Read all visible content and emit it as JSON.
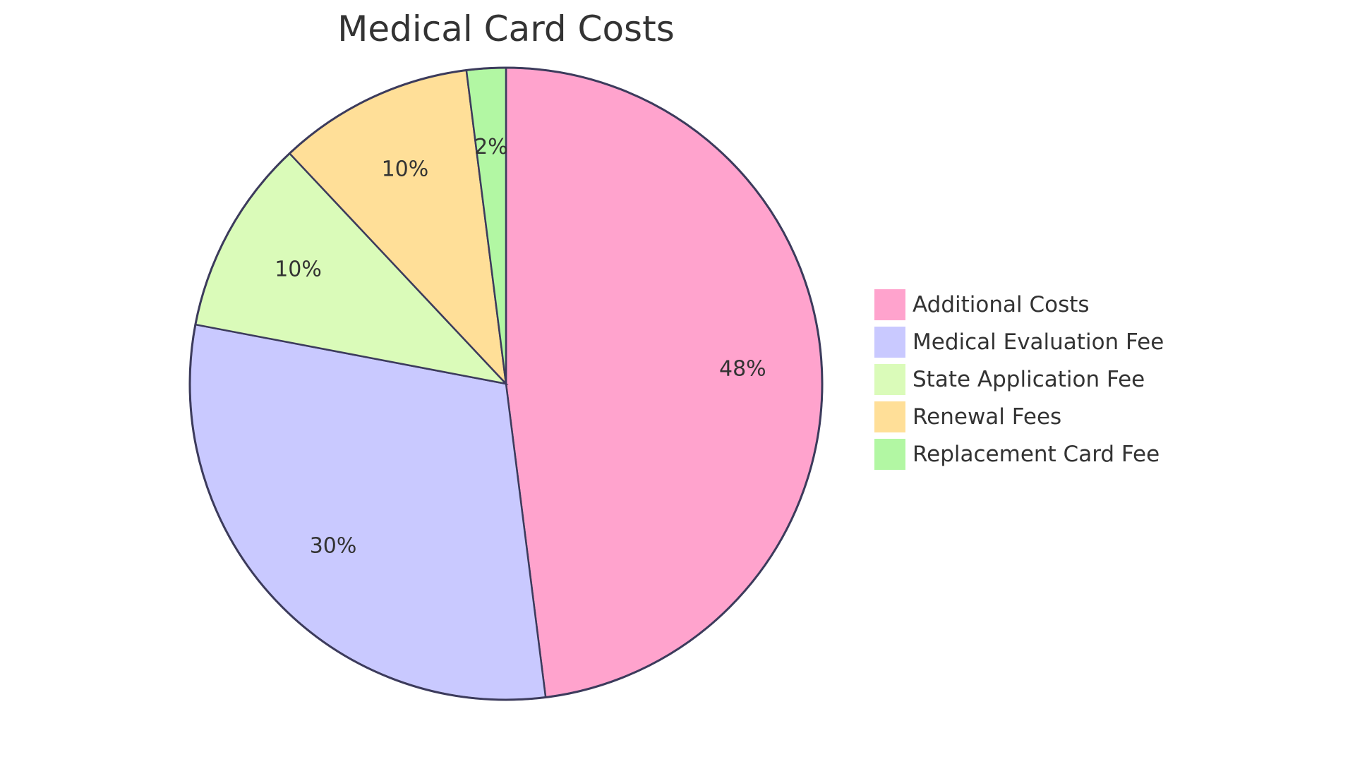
{
  "chart_data": {
    "type": "pie",
    "title": "Medical Card Costs",
    "legend_position": "right",
    "slices": [
      {
        "label": "Additional Costs",
        "value": 48,
        "display": "48%",
        "color": "#FFA3CD"
      },
      {
        "label": "Medical Evaluation Fee",
        "value": 30,
        "display": "30%",
        "color": "#C9C9FF"
      },
      {
        "label": "State Application Fee",
        "value": 10,
        "display": "10%",
        "color": "#DAFBB9"
      },
      {
        "label": "Renewal Fees",
        "value": 10,
        "display": "10%",
        "color": "#FFDF98"
      },
      {
        "label": "Replacement Card Fee",
        "value": 2,
        "display": "2%",
        "color": "#B2F7A3"
      }
    ],
    "stroke_color": "#3C3B5C"
  }
}
